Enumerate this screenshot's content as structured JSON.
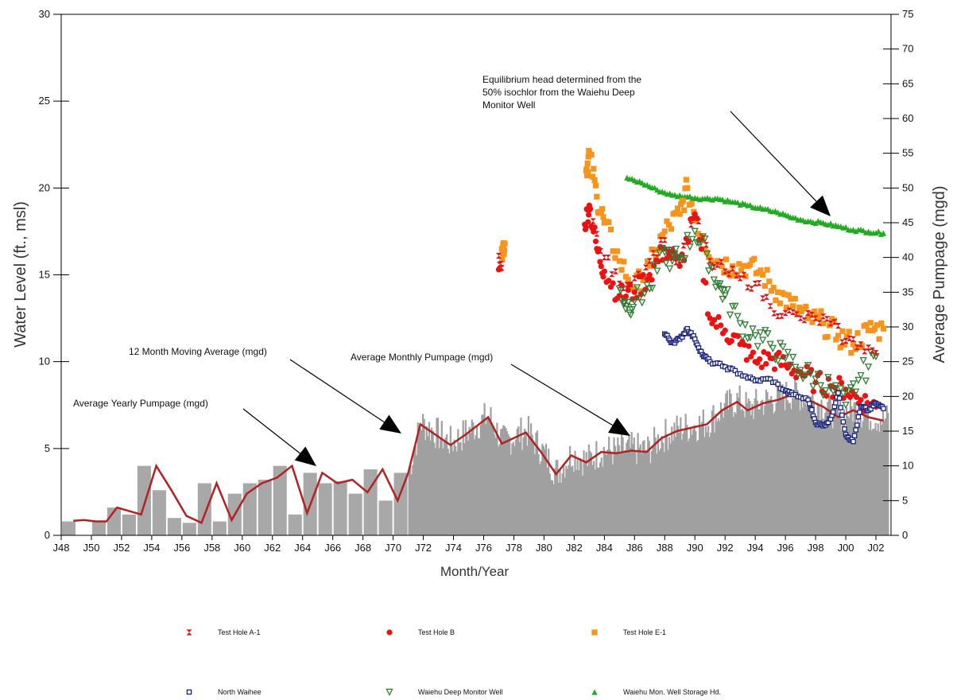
{
  "chart_data": {
    "type": "line",
    "xlabel": "Month/Year",
    "ylabel_left": "Water Level (ft., msl)",
    "ylabel_right": "Average Pumpage (mgd)",
    "x_range": [
      1948,
      2003
    ],
    "y_left_range": [
      0,
      30
    ],
    "y_right_range": [
      0,
      75
    ],
    "x_ticks": [
      "J48",
      "J50",
      "J52",
      "J54",
      "J56",
      "J58",
      "J60",
      "J62",
      "J64",
      "J66",
      "J68",
      "J70",
      "J72",
      "J74",
      "J76",
      "J78",
      "J80",
      "J82",
      "J84",
      "J86",
      "J88",
      "J90",
      "J92",
      "J94",
      "J96",
      "J98",
      "J00",
      "J02"
    ],
    "y_left_ticks": [
      0,
      5,
      10,
      15,
      20,
      25,
      30
    ],
    "y_right_ticks": [
      0,
      5,
      10,
      15,
      20,
      25,
      30,
      35,
      40,
      45,
      50,
      55,
      60,
      65,
      70,
      75
    ],
    "annotations": [
      {
        "id": "equilibrium",
        "lines": [
          "Equilibrium head determined from the",
          "50% isochlor from the Waiehu Deep",
          "Monitor Well"
        ]
      },
      {
        "id": "moving-avg",
        "lines": [
          "12 Month Moving Average (mgd)"
        ]
      },
      {
        "id": "monthly",
        "lines": [
          "Average Monthly Pumpage (mgd)"
        ]
      },
      {
        "id": "yearly",
        "lines": [
          "Average Yearly Pumpage (mgd)"
        ]
      }
    ],
    "legend": [
      {
        "name": "Test Hole A-1",
        "marker": "bowtie",
        "color": "#d7191c"
      },
      {
        "name": "Test Hole B",
        "marker": "circle",
        "color": "#ee1111"
      },
      {
        "name": "Test Hole E-1",
        "marker": "square",
        "color": "#f7941d"
      },
      {
        "name": "North Waihee",
        "marker": "open-square",
        "color": "#1a237e"
      },
      {
        "name": "Waiehu Deep Monitor Well",
        "marker": "open-triangle-down",
        "color": "#2e7d32"
      },
      {
        "name": "Waiehu Mon. Well Storage Hd.",
        "marker": "triangle-up",
        "color": "#22aa22"
      }
    ],
    "yearly_pumpage_mgd": [
      [
        1948.5,
        2.0
      ],
      [
        1950.5,
        2.0
      ],
      [
        1951.5,
        4.0
      ],
      [
        1952.5,
        3.0
      ],
      [
        1953.5,
        10.0
      ],
      [
        1954.5,
        6.5
      ],
      [
        1955.5,
        2.5
      ],
      [
        1956.5,
        1.8
      ],
      [
        1957.5,
        7.5
      ],
      [
        1958.5,
        2.0
      ],
      [
        1959.5,
        6.0
      ],
      [
        1960.5,
        7.5
      ],
      [
        1961.5,
        8.0
      ],
      [
        1962.5,
        10.0
      ],
      [
        1963.5,
        3.0
      ],
      [
        1964.5,
        9.0
      ],
      [
        1965.5,
        7.5
      ],
      [
        1966.5,
        7.8
      ],
      [
        1967.5,
        6.0
      ],
      [
        1968.5,
        9.5
      ],
      [
        1969.5,
        5.0
      ],
      [
        1970.5,
        9.0
      ]
    ],
    "moving_avg_mgd": [
      [
        1948.8,
        2.1
      ],
      [
        1949.5,
        2.2
      ],
      [
        1950.3,
        2.0
      ],
      [
        1951.0,
        2.0
      ],
      [
        1951.7,
        4.0
      ],
      [
        1952.5,
        3.5
      ],
      [
        1953.3,
        3.0
      ],
      [
        1954.3,
        10.0
      ],
      [
        1955.3,
        6.5
      ],
      [
        1956.3,
        2.8
      ],
      [
        1957.3,
        1.8
      ],
      [
        1958.3,
        7.5
      ],
      [
        1959.3,
        2.2
      ],
      [
        1960.3,
        6.0
      ],
      [
        1961.3,
        7.5
      ],
      [
        1962.3,
        8.3
      ],
      [
        1963.3,
        10.0
      ],
      [
        1964.3,
        3.2
      ],
      [
        1965.3,
        9.0
      ],
      [
        1966.3,
        7.5
      ],
      [
        1967.3,
        8.0
      ],
      [
        1968.3,
        6.2
      ],
      [
        1969.3,
        9.5
      ],
      [
        1970.3,
        5.0
      ],
      [
        1971.0,
        9.0
      ],
      [
        1971.8,
        16.0
      ],
      [
        1972.8,
        14.5
      ],
      [
        1973.8,
        13.0
      ],
      [
        1974.8,
        14.5
      ],
      [
        1976.3,
        17.0
      ],
      [
        1977.2,
        13.2
      ],
      [
        1978.8,
        14.8
      ],
      [
        1979.8,
        12.0
      ],
      [
        1980.8,
        8.8
      ],
      [
        1981.8,
        11.5
      ],
      [
        1982.8,
        10.5
      ],
      [
        1983.8,
        12.0
      ],
      [
        1984.8,
        11.8
      ],
      [
        1985.8,
        12.2
      ],
      [
        1986.8,
        12.0
      ],
      [
        1987.8,
        14.0
      ],
      [
        1988.8,
        15.0
      ],
      [
        1989.8,
        15.5
      ],
      [
        1990.8,
        16.0
      ],
      [
        1991.8,
        18.0
      ],
      [
        1992.8,
        19.2
      ],
      [
        1993.5,
        18.0
      ],
      [
        1994.5,
        19.0
      ],
      [
        1995.5,
        19.5
      ],
      [
        1996.5,
        20.3
      ],
      [
        1997.5,
        19.5
      ],
      [
        1998.5,
        18.5
      ],
      [
        1999.5,
        17.0
      ],
      [
        2000.5,
        18.0
      ],
      [
        2001.5,
        17.0
      ],
      [
        2002.5,
        16.5
      ]
    ],
    "waiehu_storage_hd": [
      [
        1985.5,
        20.6
      ],
      [
        1986.5,
        20.3
      ],
      [
        1987.5,
        19.9
      ],
      [
        1988.5,
        19.6
      ],
      [
        1989.5,
        19.5
      ],
      [
        1990.5,
        19.4
      ],
      [
        1991.5,
        19.4
      ],
      [
        1992.5,
        19.2
      ],
      [
        1993.5,
        19.0
      ],
      [
        1994.5,
        18.8
      ],
      [
        1995.5,
        18.6
      ],
      [
        1996.5,
        18.3
      ],
      [
        1997.5,
        18.1
      ],
      [
        1998.5,
        18.0
      ],
      [
        1999.5,
        17.8
      ],
      [
        2000.5,
        17.6
      ],
      [
        2001.5,
        17.5
      ],
      [
        2002.5,
        17.4
      ]
    ],
    "north_waihee": [
      [
        1988.0,
        11.6
      ],
      [
        1988.5,
        11.1
      ],
      [
        1989.0,
        11.3
      ],
      [
        1989.5,
        11.9
      ],
      [
        1990.0,
        11.3
      ],
      [
        1990.5,
        10.4
      ],
      [
        1991.0,
        10.0
      ],
      [
        1992.0,
        9.7
      ],
      [
        1993.0,
        9.3
      ],
      [
        1994.0,
        8.9
      ],
      [
        1995.0,
        9.0
      ],
      [
        1996.0,
        8.3
      ],
      [
        1996.5,
        8.1
      ],
      [
        1997.5,
        7.8
      ],
      [
        1998.0,
        6.5
      ],
      [
        1998.5,
        6.3
      ],
      [
        1999.0,
        6.7
      ],
      [
        1999.5,
        8.2
      ],
      [
        2000.0,
        5.8
      ],
      [
        2000.5,
        5.4
      ],
      [
        2001.0,
        7.4
      ],
      [
        2001.5,
        7.2
      ],
      [
        2002.0,
        7.6
      ],
      [
        2002.5,
        7.3
      ]
    ],
    "test_hole_a1": [
      [
        1977.0,
        16.1
      ],
      [
        1977.2,
        15.4
      ],
      [
        1983.0,
        18.5
      ],
      [
        1984.0,
        16.0
      ],
      [
        1985.0,
        14.5
      ],
      [
        1986.0,
        14.8
      ],
      [
        1987.0,
        15.8
      ],
      [
        1988.0,
        17.0
      ],
      [
        1989.0,
        15.6
      ],
      [
        1990.0,
        18.4
      ],
      [
        1991.0,
        15.8
      ],
      [
        1992.0,
        15.2
      ],
      [
        1993.0,
        14.8
      ],
      [
        1994.0,
        14.5
      ],
      [
        1995.0,
        13.2
      ],
      [
        1996.0,
        12.8
      ],
      [
        1997.0,
        12.5
      ],
      [
        1998.0,
        12.5
      ],
      [
        1999.0,
        12.2
      ],
      [
        2000.0,
        11.2
      ],
      [
        2001.0,
        11.0
      ],
      [
        2002.0,
        10.5
      ]
    ],
    "test_hole_b": [
      [
        1977.0,
        15.3
      ],
      [
        1982.7,
        17.9
      ],
      [
        1983.0,
        19.0
      ],
      [
        1983.5,
        16.5
      ],
      [
        1984.0,
        15.2
      ],
      [
        1985.0,
        13.8
      ],
      [
        1986.0,
        14.0
      ],
      [
        1987.0,
        15.0
      ],
      [
        1988.0,
        16.5
      ],
      [
        1989.0,
        15.5
      ],
      [
        1990.0,
        18.5
      ],
      [
        1991.0,
        12.5
      ],
      [
        1992.0,
        11.8
      ],
      [
        1993.0,
        11.0
      ],
      [
        1994.0,
        10.0
      ],
      [
        1995.0,
        10.2
      ],
      [
        1996.0,
        9.8
      ],
      [
        1997.0,
        9.4
      ],
      [
        1998.0,
        8.8
      ],
      [
        1999.0,
        8.6
      ],
      [
        2000.0,
        8.4
      ],
      [
        2001.0,
        7.8
      ],
      [
        2002.0,
        7.4
      ]
    ],
    "test_hole_e1": [
      [
        1977.2,
        16.5
      ],
      [
        1977.4,
        16.8
      ],
      [
        1982.8,
        21.0
      ],
      [
        1983.0,
        22.0
      ],
      [
        1983.5,
        19.5
      ],
      [
        1984.0,
        18.0
      ],
      [
        1985.0,
        15.8
      ],
      [
        1986.0,
        14.2
      ],
      [
        1987.0,
        15.5
      ],
      [
        1988.0,
        17.5
      ],
      [
        1989.0,
        18.5
      ],
      [
        1989.5,
        20.0
      ],
      [
        1990.5,
        17.0
      ],
      [
        1991.5,
        15.8
      ],
      [
        1992.5,
        15.5
      ],
      [
        1993.5,
        15.5
      ],
      [
        1994.5,
        15.0
      ],
      [
        1995.5,
        14.0
      ],
      [
        1996.5,
        13.2
      ],
      [
        1997.5,
        12.5
      ],
      [
        1998.5,
        12.2
      ],
      [
        1999.5,
        11.5
      ],
      [
        2000.5,
        11.0
      ],
      [
        2001.5,
        11.8
      ],
      [
        2002.5,
        11.9
      ]
    ],
    "waiehu_deep_monitor": [
      [
        1985.0,
        14.2
      ],
      [
        1985.5,
        13.2
      ],
      [
        1986.0,
        13.5
      ],
      [
        1987.0,
        14.2
      ],
      [
        1988.0,
        16.3
      ],
      [
        1988.5,
        15.8
      ],
      [
        1989.0,
        16.0
      ],
      [
        1990.0,
        17.5
      ],
      [
        1990.8,
        16.2
      ],
      [
        1991.5,
        14.5
      ],
      [
        1992.0,
        13.8
      ],
      [
        1993.0,
        12.2
      ],
      [
        1994.0,
        11.5
      ],
      [
        1995.0,
        11.0
      ],
      [
        1996.0,
        10.2
      ],
      [
        1997.0,
        9.5
      ],
      [
        1998.0,
        9.0
      ],
      [
        1999.0,
        8.5
      ],
      [
        2000.0,
        7.5
      ],
      [
        2001.0,
        9.2
      ],
      [
        2002.0,
        10.3
      ]
    ]
  }
}
